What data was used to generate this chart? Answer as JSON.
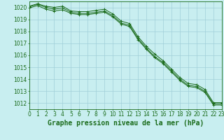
{
  "title": "Graphe pression niveau de la mer (hPa)",
  "x_labels": [
    "0",
    "1",
    "2",
    "3",
    "4",
    "5",
    "6",
    "7",
    "8",
    "9",
    "10",
    "11",
    "12",
    "13",
    "14",
    "15",
    "16",
    "17",
    "18",
    "19",
    "20",
    "21",
    "22",
    "23"
  ],
  "xlim": [
    0,
    23
  ],
  "ylim": [
    1011.5,
    1020.5
  ],
  "yticks": [
    1012,
    1013,
    1014,
    1015,
    1016,
    1017,
    1018,
    1019,
    1020
  ],
  "line_max": [
    1020.1,
    1020.3,
    1020.1,
    1020.0,
    1020.1,
    1019.7,
    1019.65,
    1019.65,
    1019.75,
    1019.85,
    1019.45,
    1018.85,
    1018.65,
    1017.55,
    1016.75,
    1016.1,
    1015.55,
    1014.85,
    1014.15,
    1013.65,
    1013.55,
    1013.15,
    1012.05,
    1012.05
  ],
  "line_mid": [
    1020.05,
    1020.25,
    1020.0,
    1019.85,
    1019.95,
    1019.6,
    1019.5,
    1019.5,
    1019.6,
    1019.7,
    1019.3,
    1018.7,
    1018.5,
    1017.4,
    1016.6,
    1015.9,
    1015.4,
    1014.7,
    1014.0,
    1013.5,
    1013.4,
    1013.0,
    1011.95,
    1011.95
  ],
  "line_min": [
    1019.95,
    1020.15,
    1019.85,
    1019.7,
    1019.8,
    1019.5,
    1019.4,
    1019.4,
    1019.5,
    1019.6,
    1019.2,
    1018.6,
    1018.4,
    1017.3,
    1016.5,
    1015.8,
    1015.3,
    1014.6,
    1013.9,
    1013.4,
    1013.3,
    1012.9,
    1011.85,
    1011.85
  ],
  "line_color": "#1a6b1a",
  "bg_color": "#c8eef0",
  "grid_color": "#a0cfd8",
  "axis_color": "#1a6b1a",
  "label_color": "#1a6b1a",
  "title_color": "#1a6b1a",
  "title_fontsize": 7,
  "tick_fontsize": 5.5
}
